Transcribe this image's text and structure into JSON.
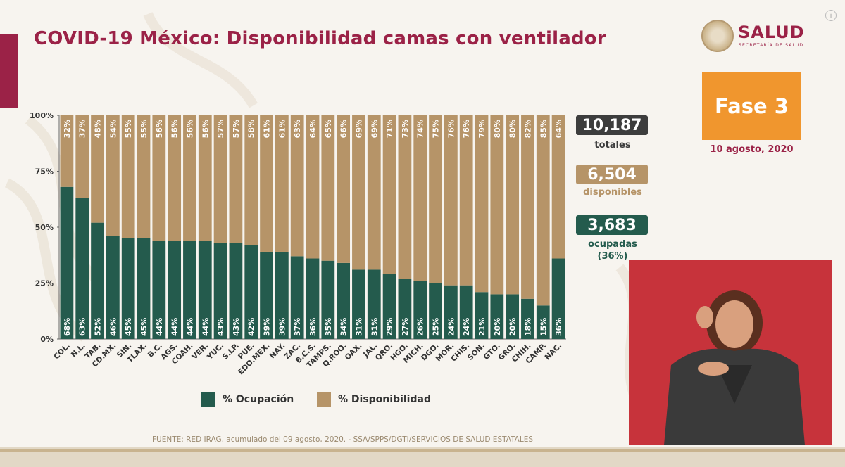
{
  "title": "COVID-19 México: Disponibilidad camas con ventilador",
  "logo": {
    "name": "SALUD",
    "subtitle": "SECRETARÍA DE SALUD"
  },
  "phase": {
    "label": "Fase 3",
    "date": "10 agosto, 2020"
  },
  "kpis": {
    "total": {
      "value": "10,187",
      "label": "totales",
      "color": "#3d3d3d"
    },
    "available": {
      "value": "6,504",
      "label": "disponibles",
      "color": "#b69468"
    },
    "occupied": {
      "value": "3,683",
      "label": "ocupadas",
      "pct": "(36%)",
      "color": "#245b4d"
    }
  },
  "legend": {
    "occupied": "% Ocupación",
    "available": "% Disponibilidad"
  },
  "source": "FUENTE: RED IRAG, acumulado del 09 agosto, 2020. -  SSA/SPPS/DGTI/SERVICIOS DE SALUD ESTATALES",
  "colors": {
    "occupied": "#245b4d",
    "available": "#b69468",
    "accent": "#9b2247",
    "phase": "#f0962e"
  },
  "chart_data": {
    "type": "bar",
    "stacked": true,
    "title": "",
    "xlabel": "",
    "ylabel": "",
    "ylim": [
      0,
      100
    ],
    "yticks": [
      "0%",
      "25%",
      "50%",
      "75%",
      "100%"
    ],
    "categories": [
      "COL.",
      "N.L.",
      "TAB.",
      "CD.MX.",
      "SIN.",
      "TLAX.",
      "B.C.",
      "AGS.",
      "COAH.",
      "VER.",
      "YUC.",
      "S.LP.",
      "PUE.",
      "EDO.MEX.",
      "NAY.",
      "ZAC.",
      "B.C.S.",
      "TAMPS.",
      "Q.ROO.",
      "OAX.",
      "JAL.",
      "QRO.",
      "HGO.",
      "MICH.",
      "DGO.",
      "MOR.",
      "CHIS.",
      "SON.",
      "GTO.",
      "GRO.",
      "CHIH.",
      "CAMP.",
      "NAC."
    ],
    "series": [
      {
        "name": "% Ocupación",
        "values": [
          68,
          63,
          52,
          46,
          45,
          45,
          44,
          44,
          44,
          44,
          43,
          43,
          42,
          39,
          39,
          37,
          36,
          35,
          34,
          31,
          31,
          29,
          27,
          26,
          25,
          24,
          24,
          21,
          20,
          20,
          18,
          15,
          36
        ]
      },
      {
        "name": "% Disponibilidad",
        "values": [
          32,
          37,
          48,
          54,
          55,
          55,
          56,
          56,
          56,
          56,
          57,
          57,
          58,
          61,
          61,
          63,
          64,
          65,
          66,
          69,
          69,
          71,
          73,
          74,
          75,
          76,
          76,
          79,
          80,
          80,
          82,
          85,
          64
        ]
      }
    ]
  }
}
